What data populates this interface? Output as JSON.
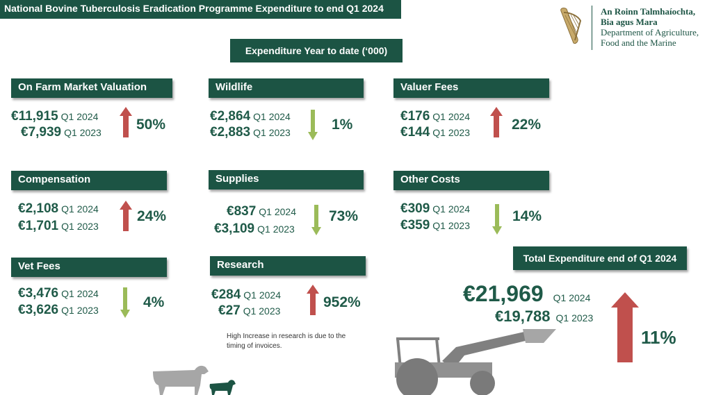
{
  "header": {
    "title": "National Bovine Tuberculosis  Eradication Programme Expenditure to end Q1 2024",
    "subtitle": "Expenditure Year to date (‘000)"
  },
  "logo": {
    "line1": "An Roinn Talmhaíochta,",
    "line2": "Bia agus Mara",
    "line3": "Department of Agriculture,",
    "line4": "Food and the Marine"
  },
  "colors": {
    "bar": "#1c5444",
    "up": "#c0504d",
    "down": "#9bbb59",
    "text": "#1f5a48"
  },
  "cards": [
    {
      "title": "On Farm Market Valuation",
      "current_amount": "€11,915",
      "current_label": "Q1 2024",
      "prior_amount": "€7,939",
      "prior_label": "Q1 2023",
      "change": "50%",
      "direction": "up"
    },
    {
      "title": "Wildlife",
      "current_amount": "€2,864",
      "current_label": "Q1 2024",
      "prior_amount": "€2,883",
      "prior_label": "Q1 2023",
      "change": "1%",
      "direction": "down"
    },
    {
      "title": "Valuer Fees",
      "current_amount": "€176",
      "current_label": "Q1 2024",
      "prior_amount": "€144",
      "prior_label": "Q1 2023",
      "change": "22%",
      "direction": "up"
    },
    {
      "title": "Compensation",
      "current_amount": "€2,108",
      "current_label": "Q1 2024",
      "prior_amount": "€1,701",
      "prior_label": "Q1 2023",
      "change": "24%",
      "direction": "up"
    },
    {
      "title": "Supplies",
      "current_amount": "€837",
      "current_label": "Q1 2024",
      "prior_amount": "€3,109",
      "prior_label": "Q1 2023",
      "change": "73%",
      "direction": "down"
    },
    {
      "title": "Other Costs",
      "current_amount": "€309",
      "current_label": "Q1 2024",
      "prior_amount": "€359",
      "prior_label": "Q1 2023",
      "change": "14%",
      "direction": "down"
    },
    {
      "title": "Vet Fees",
      "current_amount": "€3,476",
      "current_label": "Q1 2024",
      "prior_amount": "€3,626",
      "prior_label": "Q1 2023",
      "change": "4%",
      "direction": "down"
    },
    {
      "title": "Research",
      "current_amount": "€284",
      "current_label": "Q1 2024",
      "prior_amount": "€27",
      "prior_label": "Q1 2023",
      "change": "952%",
      "direction": "up"
    }
  ],
  "research_note": "High Increase in research is due to the timing of invoices.",
  "total": {
    "title": "Total Expenditure end of Q1 2024",
    "current_amount": "€21,969",
    "current_label": "Q1 2024",
    "prior_amount": "€19,788",
    "prior_label": "Q1 2023",
    "change": "11%",
    "direction": "up"
  },
  "icons": {
    "logo": "harp-icon",
    "up": "arrow-up-icon",
    "down": "arrow-down-icon",
    "cows": "cow-and-calf-icon",
    "tractor": "tractor-icon"
  }
}
